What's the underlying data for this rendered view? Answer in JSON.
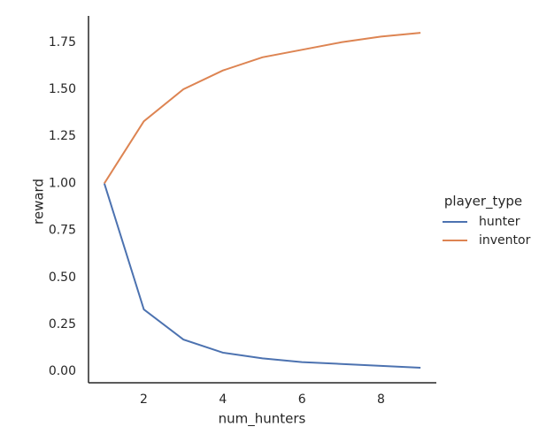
{
  "chart_data": {
    "type": "line",
    "x_label": "num_hunters",
    "y_label": "reward",
    "x": [
      1,
      2,
      3,
      4,
      5,
      6,
      7,
      8,
      9
    ],
    "series": [
      {
        "name": "hunter",
        "color": "#4c72b0",
        "values": [
          1.0,
          0.33,
          0.17,
          0.1,
          0.07,
          0.05,
          0.04,
          0.03,
          0.02
        ]
      },
      {
        "name": "inventor",
        "color": "#dd8452",
        "values": [
          1.0,
          1.33,
          1.5,
          1.6,
          1.67,
          1.71,
          1.75,
          1.78,
          1.8
        ]
      }
    ],
    "legend_title": "player_type",
    "legend": "right",
    "grid": false,
    "xlim": [
      0.6,
      9.4
    ],
    "xticks": [
      2,
      4,
      6,
      8
    ],
    "ylim": [
      -0.06,
      1.89
    ],
    "yticks": [
      {
        "value": 0,
        "label": "0.00"
      },
      {
        "value": 0.25,
        "label": "0.25"
      },
      {
        "value": 0.5,
        "label": "0.50"
      },
      {
        "value": 0.75,
        "label": "0.75"
      },
      {
        "value": 1,
        "label": "1.00"
      },
      {
        "value": 1.25,
        "label": "1.25"
      },
      {
        "value": 1.5,
        "label": "1.50"
      },
      {
        "value": 1.75,
        "label": "1.75"
      }
    ]
  }
}
